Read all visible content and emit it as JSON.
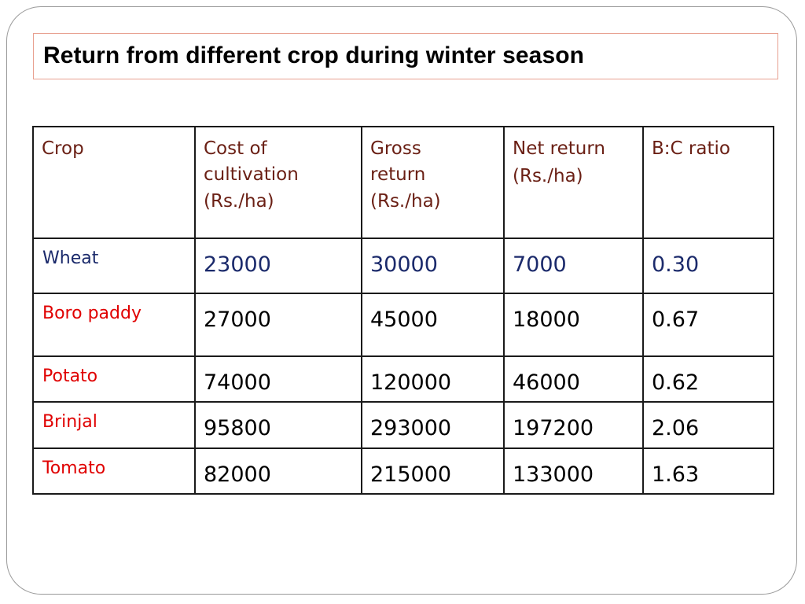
{
  "title": "Return from different crop during winter season",
  "colors": {
    "header_text": "#6a1f14",
    "wheat_row": "#1b2a6b",
    "crop_name_red": "#e00000",
    "value_black": "#000000"
  },
  "table": {
    "headers": {
      "crop": "Crop",
      "cost_line1": "Cost of",
      "cost_line2": "cultivation",
      "cost_unit": "(Rs./ha)",
      "gross_line1": "Gross",
      "gross_line2": "return",
      "gross_unit": "(Rs./ha)",
      "net_line1": "Net return",
      "net_unit": "(Rs./ha)",
      "bc": "B:C ratio"
    },
    "rows": [
      {
        "crop": "Wheat",
        "cost": "23000",
        "gross": "30000",
        "net": "7000",
        "bc": "0.30"
      },
      {
        "crop": "Boro paddy",
        "cost": "27000",
        "gross": "45000",
        "net": "18000",
        "bc": "0.67"
      },
      {
        "crop": "Potato",
        "cost": "74000",
        "gross": "120000",
        "net": "46000",
        "bc": "0.62"
      },
      {
        "crop": "Brinjal",
        "cost": "95800",
        "gross": "293000",
        "net": "197200",
        "bc": "2.06"
      },
      {
        "crop": "Tomato",
        "cost": "82000",
        "gross": "215000",
        "net": "133000",
        "bc": "1.63"
      }
    ]
  }
}
